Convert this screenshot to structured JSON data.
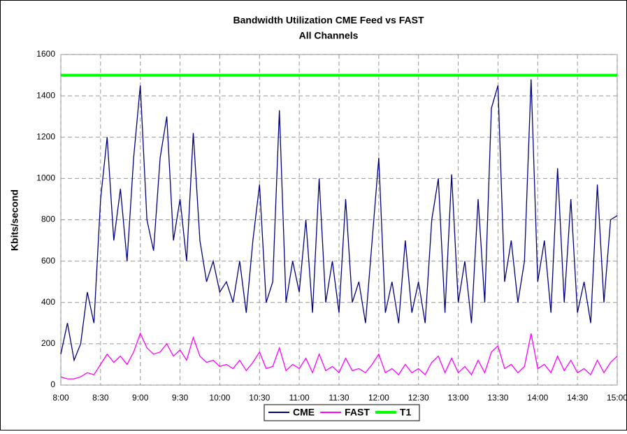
{
  "chart_data": {
    "type": "line",
    "title": "Bandwidth Utilization CME Feed vs FAST",
    "subtitle": "All Channels",
    "y_label": "Kbits/second",
    "x": [
      "8:00",
      "8:05",
      "8:10",
      "8:15",
      "8:20",
      "8:25",
      "8:30",
      "8:35",
      "8:40",
      "8:45",
      "8:50",
      "8:55",
      "9:00",
      "9:05",
      "9:10",
      "9:15",
      "9:20",
      "9:25",
      "9:30",
      "9:35",
      "9:40",
      "9:45",
      "9:50",
      "9:55",
      "10:00",
      "10:05",
      "10:10",
      "10:15",
      "10:20",
      "10:25",
      "10:30",
      "10:35",
      "10:40",
      "10:45",
      "10:50",
      "10:55",
      "11:00",
      "11:05",
      "11:10",
      "11:15",
      "11:20",
      "11:25",
      "11:30",
      "11:35",
      "11:40",
      "11:45",
      "11:50",
      "11:55",
      "12:00",
      "12:05",
      "12:10",
      "12:15",
      "12:20",
      "12:25",
      "12:30",
      "12:35",
      "12:40",
      "12:45",
      "12:50",
      "12:55",
      "13:00",
      "13:05",
      "13:10",
      "13:15",
      "13:20",
      "13:25",
      "13:30",
      "13:35",
      "13:40",
      "13:45",
      "13:50",
      "13:55",
      "14:00",
      "14:05",
      "14:10",
      "14:15",
      "14:20",
      "14:25",
      "14:30",
      "14:35",
      "14:40",
      "14:45",
      "14:50",
      "14:55",
      "15:00"
    ],
    "series": [
      {
        "name": "CME",
        "color": "#000080",
        "values": [
          150,
          300,
          120,
          200,
          450,
          300,
          900,
          1200,
          700,
          950,
          600,
          1100,
          1450,
          800,
          650,
          1100,
          1300,
          700,
          900,
          600,
          1220,
          700,
          500,
          600,
          450,
          500,
          400,
          600,
          350,
          700,
          970,
          400,
          500,
          1330,
          400,
          600,
          450,
          800,
          350,
          1000,
          400,
          600,
          350,
          900,
          400,
          500,
          300,
          700,
          1100,
          350,
          500,
          300,
          700,
          350,
          500,
          300,
          800,
          1000,
          350,
          1020,
          400,
          600,
          300,
          900,
          400,
          1340,
          1450,
          500,
          700,
          400,
          600,
          1480,
          500,
          700,
          350,
          1050,
          400,
          900,
          350,
          500,
          300,
          970,
          400,
          800,
          820
        ]
      },
      {
        "name": "FAST",
        "color": "#ff00ff",
        "values": [
          40,
          30,
          30,
          40,
          60,
          50,
          100,
          150,
          110,
          140,
          100,
          160,
          250,
          180,
          150,
          160,
          200,
          140,
          170,
          120,
          230,
          140,
          110,
          120,
          90,
          100,
          80,
          120,
          70,
          110,
          160,
          80,
          90,
          180,
          70,
          100,
          80,
          130,
          60,
          150,
          70,
          90,
          60,
          130,
          70,
          80,
          60,
          100,
          150,
          60,
          80,
          50,
          100,
          60,
          80,
          50,
          110,
          140,
          60,
          130,
          60,
          90,
          50,
          120,
          60,
          160,
          190,
          80,
          100,
          60,
          90,
          250,
          80,
          100,
          60,
          140,
          70,
          120,
          60,
          80,
          50,
          120,
          60,
          110,
          140
        ]
      },
      {
        "name": "T1",
        "color": "#00ff00",
        "values": [
          1500,
          1500,
          1500,
          1500,
          1500,
          1500,
          1500,
          1500,
          1500,
          1500,
          1500,
          1500,
          1500,
          1500,
          1500,
          1500,
          1500,
          1500,
          1500,
          1500,
          1500,
          1500,
          1500,
          1500,
          1500,
          1500,
          1500,
          1500,
          1500,
          1500,
          1500,
          1500,
          1500,
          1500,
          1500,
          1500,
          1500,
          1500,
          1500,
          1500,
          1500,
          1500,
          1500,
          1500,
          1500,
          1500,
          1500,
          1500,
          1500,
          1500,
          1500,
          1500,
          1500,
          1500,
          1500,
          1500,
          1500,
          1500,
          1500,
          1500,
          1500,
          1500,
          1500,
          1500,
          1500,
          1500,
          1500,
          1500,
          1500,
          1500,
          1500,
          1500,
          1500,
          1500,
          1500,
          1500,
          1500,
          1500,
          1500,
          1500,
          1500,
          1500,
          1500,
          1500,
          1500
        ]
      }
    ],
    "xticks": [
      "8:00",
      "8:30",
      "9:00",
      "9:30",
      "10:00",
      "10:30",
      "11:00",
      "11:30",
      "12:00",
      "12:30",
      "13:00",
      "13:30",
      "14:00",
      "14:30",
      "15:00"
    ],
    "ylim": [
      0,
      1600
    ],
    "yticks": [
      0,
      200,
      400,
      600,
      800,
      1000,
      1200,
      1400,
      1600
    ],
    "grid": true,
    "legend": "bottom"
  }
}
